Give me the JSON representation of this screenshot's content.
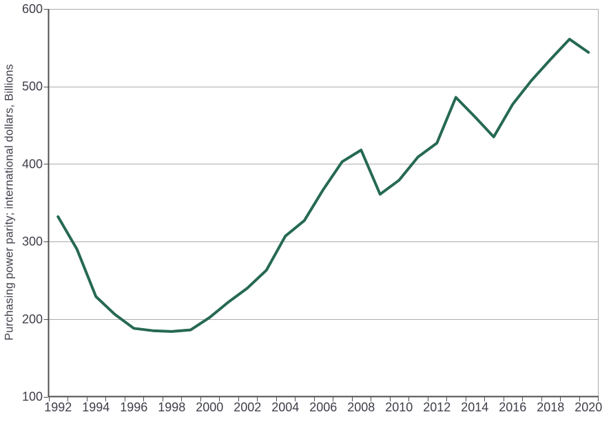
{
  "chart_data": {
    "type": "line",
    "title": "",
    "xlabel": "",
    "ylabel": "Purchasing power parity; international dollars, Billions",
    "x": [
      1992,
      1993,
      1994,
      1995,
      1996,
      1997,
      1998,
      1999,
      2000,
      2001,
      2002,
      2003,
      2004,
      2005,
      2006,
      2007,
      2008,
      2009,
      2010,
      2011,
      2012,
      2013,
      2014,
      2015,
      2016,
      2017,
      2018,
      2019,
      2020
    ],
    "series": [
      {
        "name": "Purchasing power parity, international dollars (Billions)",
        "values": [
          332,
          290,
          229,
          206,
          188,
          185,
          184,
          186,
          202,
          222,
          240,
          263,
          307,
          327,
          367,
          403,
          418,
          361,
          379,
          409,
          427,
          486,
          461,
          435,
          477,
          508,
          535,
          561,
          544
        ]
      }
    ],
    "ylim": [
      100,
      600
    ],
    "yticks": [
      100,
      200,
      300,
      400,
      500,
      600
    ],
    "xtick_labels": [
      "1992",
      "1994",
      "1996",
      "1998",
      "2000",
      "2002",
      "2004",
      "2006",
      "2008",
      "2010",
      "2012",
      "2014",
      "2016",
      "2018",
      "2020"
    ],
    "grid": "horizontal",
    "legend": "none",
    "colors": {
      "line": "#266952",
      "gridline": "#ABABAB",
      "axis": "#4D4D4D",
      "text": "#3E3E49",
      "background": "#FFFFFF"
    }
  }
}
